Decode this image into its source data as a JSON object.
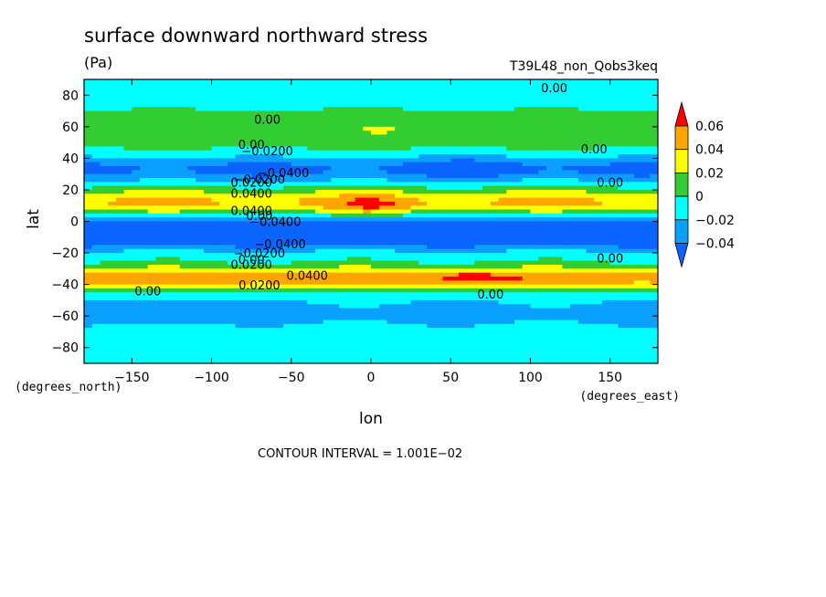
{
  "chart_data": {
    "type": "heatmap",
    "title": "surface downward northward stress",
    "units": "(Pa)",
    "run_label": "T39L48_non_Qobs3keq",
    "xlabel": "lon",
    "ylabel": "lat",
    "x_units": "(degrees_east)",
    "y_units": "(degrees_north)",
    "xlim": [
      -180,
      180
    ],
    "ylim": [
      -90,
      90
    ],
    "x_ticks": [
      -150,
      -100,
      -50,
      0,
      50,
      100,
      150
    ],
    "x_tick_labels": [
      "−150",
      "−100",
      "−50",
      "0",
      "50",
      "100",
      "150"
    ],
    "y_ticks": [
      80,
      60,
      40,
      20,
      0,
      -20,
      -40,
      -60,
      -80
    ],
    "y_tick_labels": [
      "80",
      "60",
      "40",
      "20",
      "0",
      "−20",
      "−40",
      "−60",
      "−80"
    ],
    "contour_interval_text": "CONTOUR INTERVAL = 1.001E−02",
    "colorbar": {
      "levels": [
        -0.04,
        -0.02,
        0,
        0.02,
        0.04,
        0.06
      ],
      "tick_labels": [
        "−0.04",
        "−0.02",
        "0",
        "0.02",
        "0.04",
        "0.06"
      ],
      "colors": [
        "#0a64ff",
        "#0aa0ff",
        "#00ffff",
        "#32cd32",
        "#ffff00",
        "#ffa500",
        "#ff0000"
      ]
    },
    "contour_labels": [
      {
        "text": "0.00",
        "lon": 115,
        "lat": 82
      },
      {
        "text": "0.00",
        "lon": -65,
        "lat": 62
      },
      {
        "text": "0.00",
        "lon": -75,
        "lat": 46
      },
      {
        "text": "−0.0200",
        "lon": -65,
        "lat": 42
      },
      {
        "text": "0.00",
        "lon": 140,
        "lat": 43
      },
      {
        "text": "−0.0400",
        "lon": -55,
        "lat": 28
      },
      {
        "text": "−0.0200",
        "lon": -70,
        "lat": 24
      },
      {
        "text": "0.0200",
        "lon": -75,
        "lat": 22
      },
      {
        "text": "0.0400",
        "lon": -75,
        "lat": 15
      },
      {
        "text": "0.00",
        "lon": 150,
        "lat": 22
      },
      {
        "text": "0.0400",
        "lon": -75,
        "lat": 4
      },
      {
        "text": "0.00",
        "lon": -70,
        "lat": 1
      },
      {
        "text": "−0.0400",
        "lon": -60,
        "lat": -3
      },
      {
        "text": "−0.0400",
        "lon": -57,
        "lat": -17
      },
      {
        "text": "−0.0200",
        "lon": -70,
        "lat": -23
      },
      {
        "text": "0.00",
        "lon": -75,
        "lat": -27
      },
      {
        "text": "0.0200",
        "lon": -75,
        "lat": -30
      },
      {
        "text": "0.00",
        "lon": 150,
        "lat": -26
      },
      {
        "text": "0.0400",
        "lon": -40,
        "lat": -37
      },
      {
        "text": "0.0200",
        "lon": -70,
        "lat": -43
      },
      {
        "text": "0.00",
        "lon": -140,
        "lat": -47
      },
      {
        "text": "0.00",
        "lon": 75,
        "lat": -49
      }
    ]
  }
}
